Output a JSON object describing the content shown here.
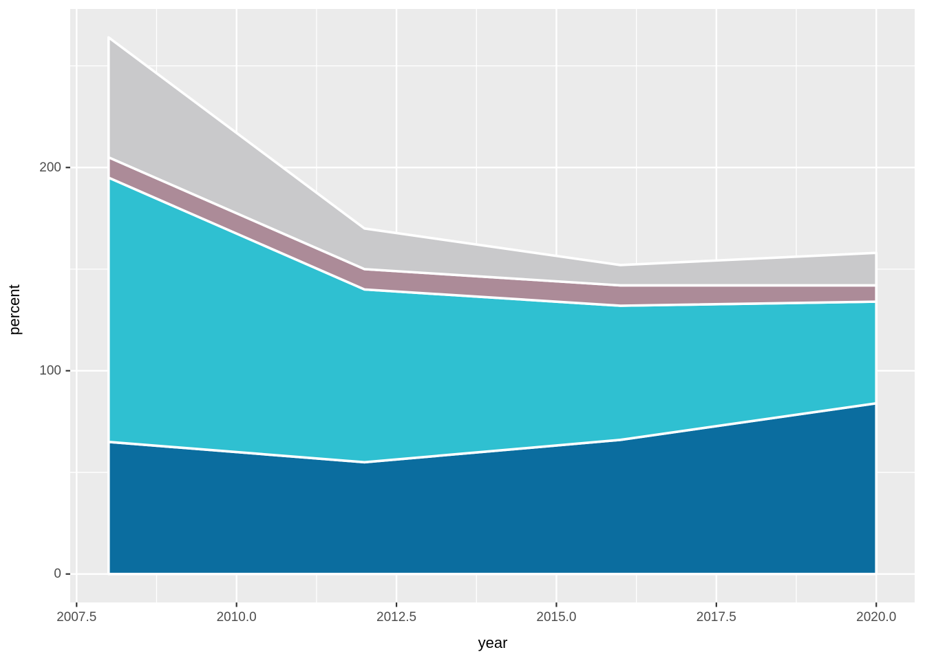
{
  "figure": {
    "background": "#FFFFFF",
    "panel_background": "#EBEBEB",
    "grid_color": "#FFFFFF",
    "tick_mark_color": "#333333",
    "tick_label_color": "#4D4D4D",
    "axis_title_color": "#000000",
    "area_outline_color": "#FFFFFF"
  },
  "chart_data": {
    "type": "area",
    "stacked": true,
    "title": "",
    "xlabel": "year",
    "ylabel": "percent",
    "x": [
      2008,
      2012,
      2016,
      2020
    ],
    "series": [
      {
        "name": "dark-blue-band",
        "color": "#0B6D9F",
        "values": [
          65,
          55,
          66,
          84
        ]
      },
      {
        "name": "cyan-band",
        "color": "#2FC0D1",
        "values": [
          130,
          85,
          66,
          50
        ]
      },
      {
        "name": "mauve-band",
        "color": "#AC8B98",
        "values": [
          10,
          10,
          10,
          8
        ]
      },
      {
        "name": "light-gray-band",
        "color": "#C9C9CB",
        "values": [
          59,
          20,
          10,
          16
        ]
      }
    ],
    "stack_tops": {
      "dark-blue-band": [
        65,
        55,
        66,
        84
      ],
      "cyan-band": [
        195,
        140,
        132,
        134
      ],
      "mauve-band": [
        205,
        150,
        142,
        142
      ],
      "light-gray-band": [
        264,
        170,
        152,
        158
      ]
    },
    "xlim": [
      2007.4,
      2020.6
    ],
    "ylim": [
      -14,
      278
    ],
    "x_ticks": [
      2007.5,
      2010.0,
      2012.5,
      2015.0,
      2017.5,
      2020.0
    ],
    "x_tick_labels": [
      "2007.5",
      "2010.0",
      "2012.5",
      "2015.0",
      "2017.5",
      "2020.0"
    ],
    "y_ticks": [
      0,
      100,
      200
    ],
    "y_tick_labels": [
      "0",
      "100",
      "200"
    ],
    "x_minor_ticks": [
      2008.75,
      2011.25,
      2013.75,
      2016.25,
      2018.75
    ],
    "y_minor_ticks": [
      50,
      150,
      250
    ],
    "grid": true,
    "legend_position": "none"
  }
}
